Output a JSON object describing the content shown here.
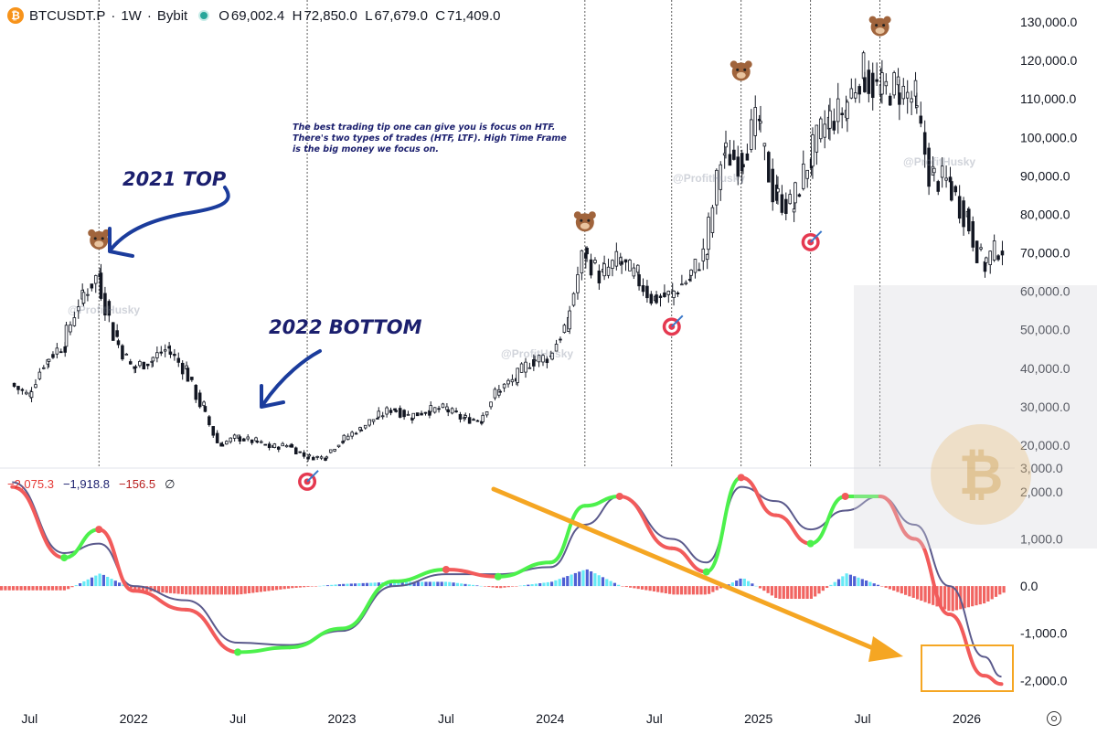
{
  "header": {
    "symbol": "BTCUSDT.P",
    "sep1": "·",
    "interval": "1W",
    "sep2": "·",
    "exchange": "Bybit",
    "coin_icon": "bitcoin-icon",
    "open_label": "O",
    "open": "69,002.4",
    "high_label": "H",
    "high": "72,850.0",
    "low_label": "L",
    "low": "67,679.0",
    "close_label": "C",
    "close": "71,409.0"
  },
  "macd_header": {
    "v1": "−2,075.3",
    "v2": "−1,918.8",
    "v3": "−156.5",
    "symbol": "∅"
  },
  "annotations": {
    "note": "The best trading tip one can give you is focus on HTF. There's two types of trades (HTF, LTF). High Time Frame is the big money we focus on.",
    "top_label": "2021 TOP",
    "bottom_label": "2022 BOTTOM",
    "watermark": "@ProfitHusky",
    "bear_icon": "bear-icon",
    "target_icon": "target-icon"
  },
  "colors": {
    "up": "#ffffff",
    "down": "#131722",
    "green_line": "#4cf14c",
    "red_line": "#f25b5b",
    "signal_line": "#5b5a8c",
    "hist_red": "#ef5350",
    "hist_cyan": "#56e8f5",
    "hist_blue": "#3c4fcf",
    "arrow": "#f5a623",
    "ink": "#1b3c9c"
  },
  "chart_data": [
    {
      "type": "candlestick",
      "title": "BTCUSDT.P · 1W · Bybit",
      "y_ticks": [
        "130,000.0",
        "120,000.0",
        "110,000.0",
        "100,000.0",
        "90,000.0",
        "80,000.0",
        "70,000.0",
        "60,000.0",
        "50,000.0",
        "40,000.0",
        "30,000.0",
        "20,000.0",
        "3,000.0"
      ],
      "x_ticks": [
        "Jul",
        "2022",
        "Jul",
        "2023",
        "Jul",
        "2024",
        "Jul",
        "2025",
        "Jul",
        "2026"
      ],
      "ylim": [
        15000,
        130000
      ],
      "x_range": [
        "2021-06",
        "2026-03"
      ],
      "x": [
        "2021-06",
        "2021-07",
        "2021-08",
        "2021-09",
        "2021-10",
        "2021-11",
        "2021-12",
        "2022-01",
        "2022-02",
        "2022-03",
        "2022-04",
        "2022-05",
        "2022-06",
        "2022-07",
        "2022-08",
        "2022-09",
        "2022-10",
        "2022-11",
        "2022-12",
        "2023-01",
        "2023-02",
        "2023-03",
        "2023-04",
        "2023-05",
        "2023-06",
        "2023-07",
        "2023-08",
        "2023-09",
        "2023-10",
        "2023-11",
        "2023-12",
        "2024-01",
        "2024-02",
        "2024-03",
        "2024-04",
        "2024-05",
        "2024-06",
        "2024-07",
        "2024-08",
        "2024-09",
        "2024-10",
        "2024-11",
        "2024-12",
        "2025-01",
        "2025-02",
        "2025-03",
        "2025-04",
        "2025-05",
        "2025-06",
        "2025-07",
        "2025-08",
        "2025-09",
        "2025-10",
        "2025-11",
        "2025-12",
        "2026-01",
        "2026-02",
        "2026-03"
      ],
      "close": [
        36000,
        33000,
        42000,
        46000,
        58000,
        64000,
        48000,
        40000,
        42000,
        45000,
        40000,
        30000,
        20000,
        22000,
        21000,
        19500,
        20000,
        17000,
        16800,
        21000,
        24000,
        27000,
        29500,
        27500,
        29000,
        29500,
        27000,
        26500,
        34000,
        37000,
        42000,
        43000,
        51000,
        70000,
        64000,
        68000,
        64000,
        58000,
        59000,
        63000,
        70000,
        96000,
        94000,
        104000,
        85000,
        82000,
        94000,
        104000,
        107000,
        117000,
        112000,
        113000,
        110000,
        90000,
        88000,
        80000,
        67000,
        71409
      ],
      "events": {
        "bear_tops": [
          "2021-11",
          "2024-03",
          "2024-12",
          "2025-08"
        ],
        "target_bottoms": [
          "2022-11",
          "2024-08",
          "2025-04"
        ]
      }
    },
    {
      "type": "macd",
      "y_ticks": [
        "2,000.0",
        "1,000.0",
        "0.0",
        "-1,000.0",
        "-2,000.0"
      ],
      "ylim": [
        -2400,
        2500
      ],
      "macd": {
        "name": "",
        "x": [
          "2021-06",
          "2021-09",
          "2021-11",
          "2022-01",
          "2022-04",
          "2022-07",
          "2022-10",
          "2023-01",
          "2023-04",
          "2023-07",
          "2023-10",
          "2024-01",
          "2024-03",
          "2024-05",
          "2024-08",
          "2024-10",
          "2024-12",
          "2025-02",
          "2025-04",
          "2025-06",
          "2025-08",
          "2025-10",
          "2025-12",
          "2026-02",
          "2026-03"
        ],
        "values": [
          2100,
          600,
          1200,
          -100,
          -500,
          -1400,
          -1300,
          -900,
          100,
          350,
          200,
          500,
          1700,
          1900,
          800,
          300,
          2300,
          1500,
          900,
          1900,
          1900,
          1000,
          -600,
          -1900,
          -2075
        ]
      },
      "signal": {
        "name": "",
        "values": [
          2200,
          700,
          900,
          0,
          -300,
          -1200,
          -1250,
          -950,
          0,
          250,
          250,
          400,
          1300,
          1900,
          1000,
          500,
          2100,
          1800,
          1200,
          1600,
          1900,
          1300,
          0,
          -1500,
          -1919
        ]
      },
      "histogram_last": -156.5
    }
  ]
}
